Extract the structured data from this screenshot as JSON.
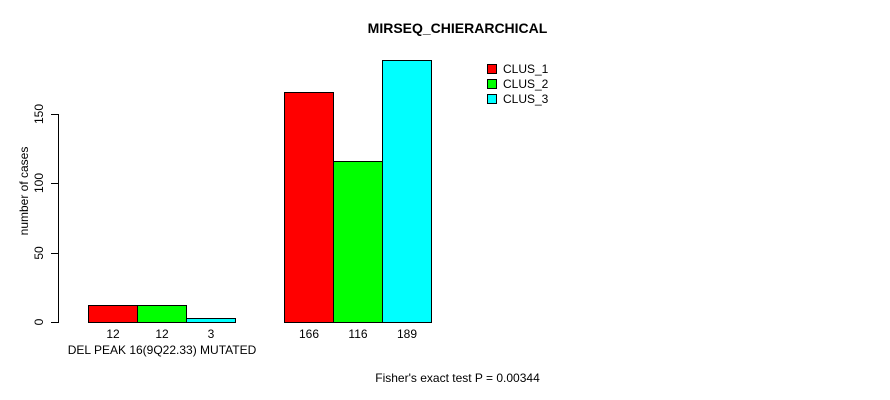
{
  "chart_data": {
    "type": "bar",
    "title": "MIRSEQ_CHIERARCHICAL",
    "xlabel": "",
    "ylabel": "number of cases",
    "yticks": [
      0,
      50,
      100,
      150
    ],
    "ylim": [
      0,
      191
    ],
    "grid": false,
    "legend_position": "top-right",
    "bar_value_labels_shown": true,
    "series": [
      {
        "name": "CLUS_1",
        "color": "#FF0000"
      },
      {
        "name": "CLUS_2",
        "color": "#00FF00"
      },
      {
        "name": "CLUS_3",
        "color": "#00FFFF"
      }
    ],
    "groups": [
      {
        "label": "DEL PEAK 16(9Q22.33) MUTATED",
        "values": [
          12,
          12,
          3
        ]
      },
      {
        "label": "",
        "values": [
          166,
          116,
          189
        ]
      }
    ],
    "annotation": "Fisher's exact test P = 0.00344",
    "colors": {
      "background": "#FFFFFF",
      "axis": "#000000",
      "text": "#000000"
    }
  }
}
